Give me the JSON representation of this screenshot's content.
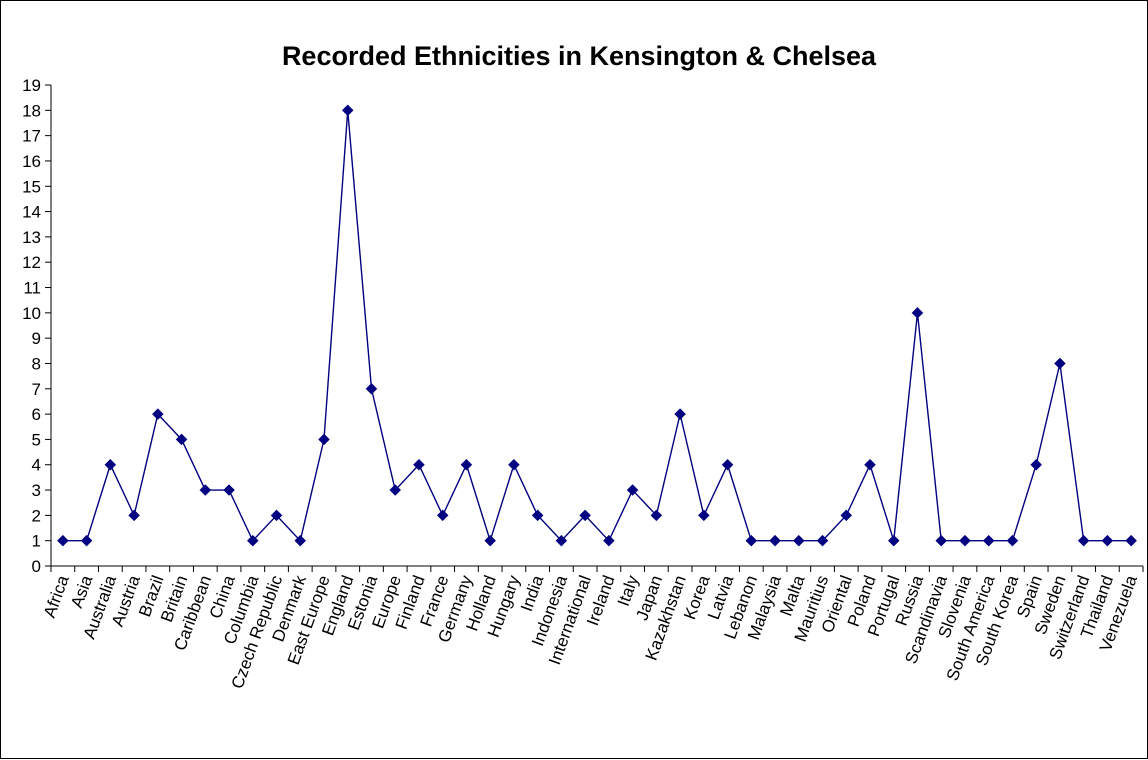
{
  "chart_data": {
    "type": "line",
    "title": "Recorded Ethnicities in Kensington & Chelsea",
    "xlabel": "",
    "ylabel": "",
    "ylim": [
      0,
      19
    ],
    "yticks": [
      0,
      1,
      2,
      3,
      4,
      5,
      6,
      7,
      8,
      9,
      10,
      11,
      12,
      13,
      14,
      15,
      16,
      17,
      18,
      19
    ],
    "grid": false,
    "legend": "none",
    "line_color": "#000080",
    "marker": "diamond",
    "categories": [
      "Africa",
      "Asia",
      "Australia",
      "Austria",
      "Brazil",
      "Britain",
      "Caribbean",
      "China",
      "Columbia",
      "Czech Republic",
      "Denmark",
      "East Europe",
      "England",
      "Estonia",
      "Europe",
      "Finland",
      "France",
      "Germany",
      "Holland",
      "Hungary",
      "India",
      "Indonesia",
      "International",
      "Ireland",
      "Italy",
      "Japan",
      "Kazakhstan",
      "Korea",
      "Latvia",
      "Lebanon",
      "Malaysia",
      "Malta",
      "Mauritius",
      "Oriental",
      "Poland",
      "Portugal",
      "Russia",
      "Scandinavia",
      "Slovenia",
      "South America",
      "South Korea",
      "Spain",
      "Sweden",
      "Switzerland",
      "Thailand",
      "Venezuela"
    ],
    "values": [
      1,
      1,
      4,
      2,
      6,
      5,
      3,
      3,
      1,
      2,
      1,
      5,
      18,
      7,
      3,
      4,
      2,
      4,
      1,
      4,
      2,
      1,
      2,
      1,
      3,
      2,
      6,
      2,
      4,
      1,
      1,
      1,
      1,
      2,
      4,
      1,
      10,
      1,
      1,
      1,
      1,
      4,
      8,
      1,
      1,
      1
    ]
  }
}
